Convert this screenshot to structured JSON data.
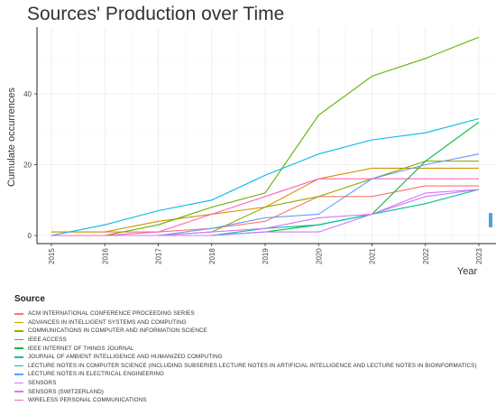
{
  "chart_data": {
    "type": "line",
    "title": "Sources' Production over Time",
    "xlabel": "Year",
    "ylabel": "Cumulate occurrences",
    "x": [
      "2015",
      "2016",
      "2017",
      "2018",
      "2019",
      "2020",
      "2021",
      "2022",
      "2023"
    ],
    "y_ticks": [
      0,
      20,
      40
    ],
    "ylim": [
      -1,
      59
    ],
    "grid": true,
    "legend_title": "Source",
    "legend_position": "bottom",
    "series": [
      {
        "name": "ACM INTERNATIONAL CONFERENCE PROCEEDING SERIES",
        "color": "#f8766d",
        "values": [
          1,
          1,
          1,
          2,
          4,
          11,
          11,
          14,
          14
        ]
      },
      {
        "name": "ADVANCES IN INTELLIGENT SYSTEMS AND COMPUTING",
        "color": "#d39200",
        "values": [
          1,
          1,
          4,
          6,
          8,
          16,
          19,
          19,
          19
        ]
      },
      {
        "name": "COMMUNICATIONS IN COMPUTER AND INFORMATION SCIENCE",
        "color": "#93aa00",
        "values": [
          0,
          0,
          0,
          1,
          8,
          11,
          16,
          21,
          21
        ]
      },
      {
        "name": "IEEE ACCESS",
        "color": "#5bb300",
        "values": [
          0,
          0,
          3,
          8,
          12,
          34,
          45,
          50,
          56
        ]
      },
      {
        "name": "IEEE INTERNET OF THINGS JOURNAL",
        "color": "#00ba38",
        "values": [
          0,
          0,
          0,
          0,
          1,
          3,
          6,
          21,
          32
        ]
      },
      {
        "name": "JOURNAL OF AMBIENT INTELLIGENCE AND HUMANIZED COMPUTING",
        "color": "#00c19f",
        "values": [
          0,
          0,
          0,
          0,
          2,
          3,
          6,
          9,
          13
        ]
      },
      {
        "name": "LECTURE NOTES IN COMPUTER SCIENCE (INCLUDING SUBSERIES LECTURE NOTES IN ARTIFICIAL INTELLIGENCE AND LECTURE NOTES IN BIOINFORMATICS)",
        "color": "#00b9e3",
        "values": [
          0,
          3,
          7,
          10,
          17,
          23,
          27,
          29,
          33
        ]
      },
      {
        "name": "LECTURE NOTES IN ELECTRICAL ENGINEERING",
        "color": "#619cff",
        "values": [
          0,
          0,
          0,
          2,
          5,
          6,
          16,
          20,
          23
        ]
      },
      {
        "name": "SENSORS",
        "color": "#db72fb",
        "values": [
          0,
          0,
          0,
          1,
          2,
          5,
          6,
          12,
          13
        ]
      },
      {
        "name": "SENSORS (SWITZERLAND)",
        "color": "#c77cff",
        "values": [
          0,
          0,
          0,
          0,
          1,
          1,
          6,
          11,
          13
        ]
      },
      {
        "name": "WIRELESS PERSONAL COMMUNICATIONS",
        "color": "#ff61c3",
        "values": [
          0,
          0,
          1,
          6,
          11,
          16,
          16,
          16,
          16
        ]
      }
    ]
  }
}
